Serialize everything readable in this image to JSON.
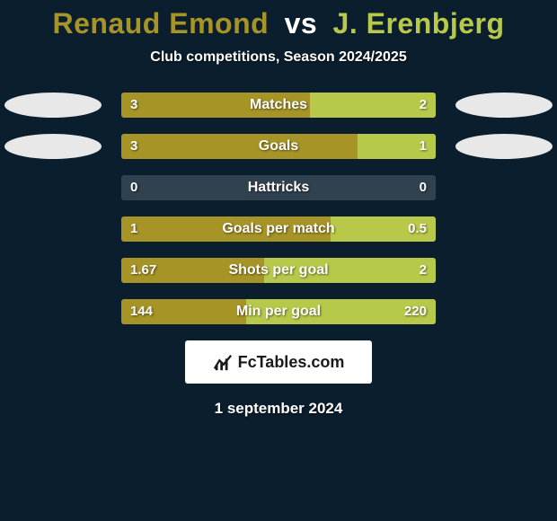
{
  "background_color": "#0b1e2d",
  "title": {
    "player1": "Renaud Emond",
    "vs": "vs",
    "player2": "J. Erenbjerg",
    "player1_color": "#a79426",
    "vs_color": "#ffffff",
    "player2_color": "#b8c94a",
    "fontsize": 32
  },
  "subtitle": {
    "text": "Club competitions, Season 2024/2025",
    "color": "#ffffff",
    "fontsize": 16
  },
  "bars": {
    "track_width": 350,
    "track_height": 28,
    "row_gap": 18,
    "left_color": "#a79426",
    "right_color": "#b8c94a",
    "empty_color": "#30414f",
    "label_color": "#ffffff",
    "label_fontsize": 16,
    "value_fontsize": 15,
    "avatar": {
      "width": 108,
      "height": 28,
      "color": "#e8e8e8",
      "show_left_on_row": 0,
      "show_right_on_row": 0,
      "show_left_on_row2": 1,
      "show_right_on_row2": 1
    },
    "rows": [
      {
        "label": "Matches",
        "left_val": "3",
        "right_val": "2",
        "left_pct": 60,
        "right_pct": 40,
        "show_avatars": true
      },
      {
        "label": "Goals",
        "left_val": "3",
        "right_val": "1",
        "left_pct": 75,
        "right_pct": 25,
        "show_avatars": true
      },
      {
        "label": "Hattricks",
        "left_val": "0",
        "right_val": "0",
        "left_pct": 0,
        "right_pct": 0,
        "show_avatars": false
      },
      {
        "label": "Goals per match",
        "left_val": "1",
        "right_val": "0.5",
        "left_pct": 66.7,
        "right_pct": 33.3,
        "show_avatars": false
      },
      {
        "label": "Shots per goal",
        "left_val": "1.67",
        "right_val": "2",
        "left_pct": 45.5,
        "right_pct": 54.5,
        "show_avatars": false
      },
      {
        "label": "Min per goal",
        "left_val": "144",
        "right_val": "220",
        "left_pct": 39.6,
        "right_pct": 60.4,
        "show_avatars": false
      }
    ]
  },
  "logo": {
    "background": "#ffffff",
    "text": "FcTables.com",
    "text_color": "#1a1a1a",
    "fontsize": 18
  },
  "date": {
    "text": "1 september 2024",
    "color": "#ffffff",
    "fontsize": 17
  }
}
